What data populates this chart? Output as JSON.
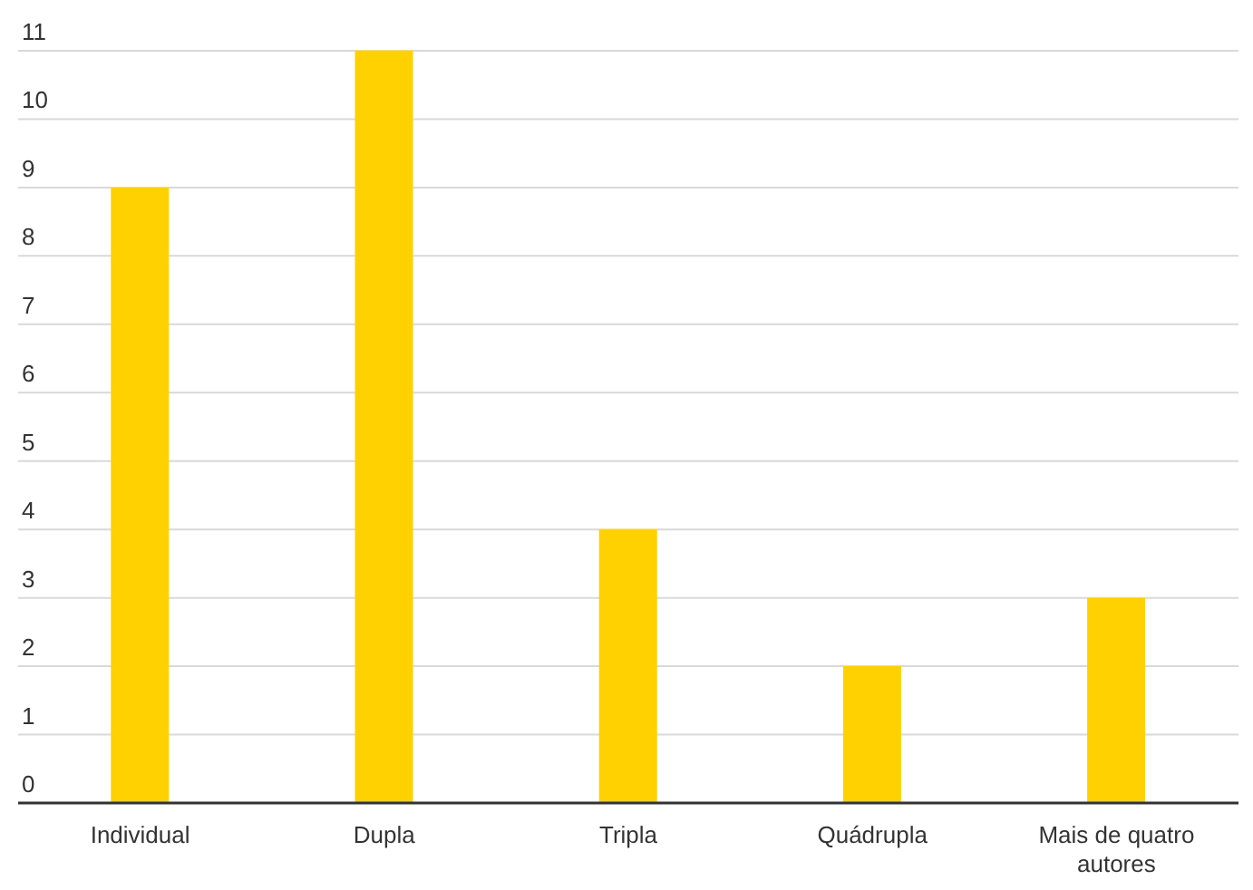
{
  "chart_data": {
    "type": "bar",
    "categories": [
      "Individual",
      "Dupla",
      "Tripla",
      "Quádrupla",
      "Mais de quatro autores"
    ],
    "values": [
      9,
      11,
      4,
      2,
      3
    ],
    "color": "#ffd100",
    "ylim": [
      0,
      11
    ],
    "yticks": [
      0,
      1,
      2,
      3,
      4,
      5,
      6,
      7,
      8,
      9,
      10,
      11
    ],
    "grid": "y",
    "legend": false
  }
}
